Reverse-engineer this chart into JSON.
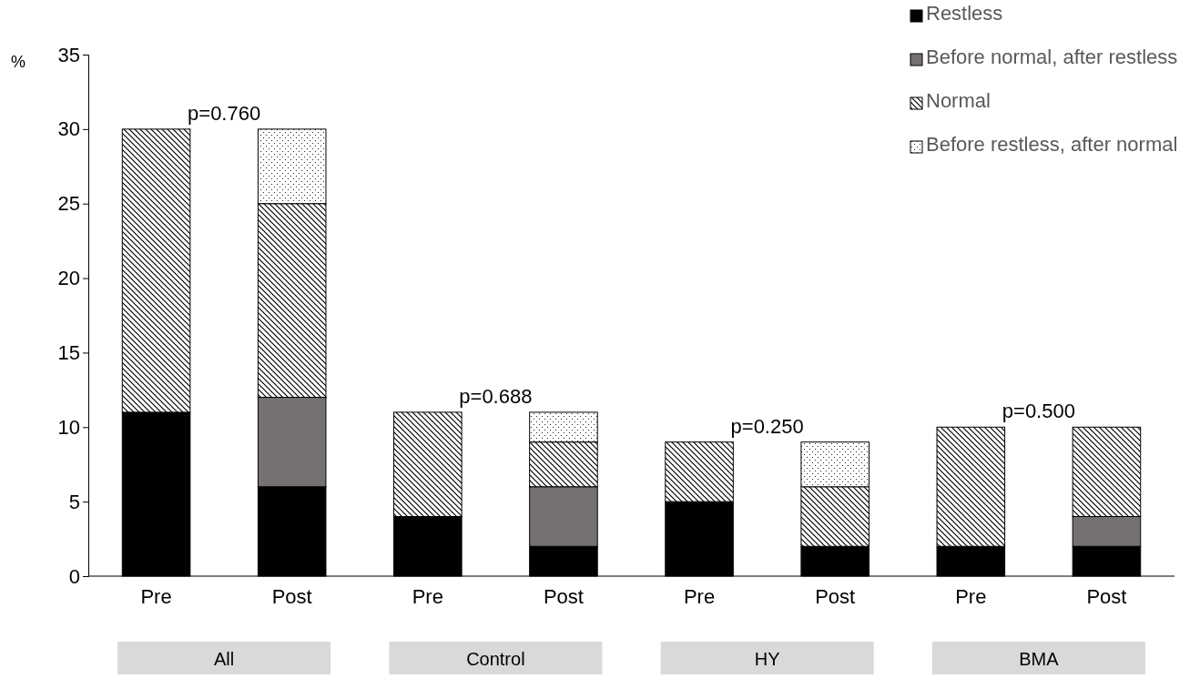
{
  "chart_data": {
    "type": "bar",
    "stacked": true,
    "ylabel": "%",
    "categories": [
      "Pre",
      "Post",
      "Pre",
      "Post",
      "Pre",
      "Post",
      "Pre",
      "Post"
    ],
    "series": [
      {
        "name": "Restless",
        "color": "#000000",
        "values": [
          11,
          6,
          4,
          2,
          5,
          2,
          2,
          2
        ]
      },
      {
        "name": "Before normal, after restless",
        "color": "#767171",
        "values": [
          0,
          6,
          0,
          4,
          0,
          0,
          0,
          2
        ]
      },
      {
        "name": "Normal",
        "color": "#000000",
        "values": [
          19,
          13,
          7,
          3,
          4,
          4,
          8,
          6
        ]
      },
      {
        "name": "Before restless, after normal",
        "color": "#000000",
        "values": [
          0,
          5,
          0,
          2,
          0,
          3,
          0,
          0
        ]
      }
    ],
    "ylim": [
      0,
      35
    ],
    "yticks": [
      0,
      5,
      10,
      15,
      20,
      25,
      30,
      35
    ],
    "grid": false,
    "legend": "top right",
    "annotations": [
      "p=0.760",
      "p=0.688",
      "p=0.250",
      "p=0.500",
      "All",
      "Control",
      "HY",
      "BMA"
    ]
  }
}
